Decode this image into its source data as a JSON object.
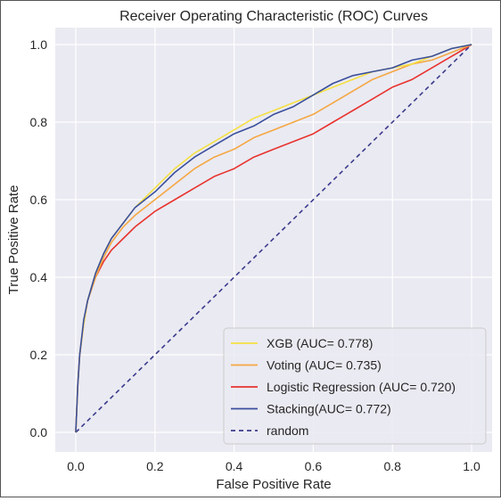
{
  "chart_data": {
    "type": "line",
    "title": "Receiver Operating Characteristic (ROC) Curves",
    "xlabel": "False Positive Rate",
    "ylabel": "True Positive Rate",
    "xlim": [
      0.0,
      1.0
    ],
    "ylim": [
      0.0,
      1.0
    ],
    "xticks": [
      "0.0",
      "0.2",
      "0.4",
      "0.6",
      "0.8",
      "1.0"
    ],
    "yticks": [
      "0.0",
      "0.2",
      "0.4",
      "0.6",
      "0.8",
      "1.0"
    ],
    "grid": true,
    "background": "#eaeaf2",
    "legend_position": "lower-right",
    "series": [
      {
        "name": "XGB (AUC= 0.778)",
        "color": "#f5e042",
        "dashed": false,
        "x": [
          0,
          0.005,
          0.01,
          0.02,
          0.03,
          0.05,
          0.07,
          0.09,
          0.12,
          0.15,
          0.2,
          0.25,
          0.3,
          0.35,
          0.4,
          0.45,
          0.5,
          0.55,
          0.6,
          0.65,
          0.7,
          0.75,
          0.8,
          0.85,
          0.9,
          0.95,
          1.0
        ],
        "y": [
          0,
          0.12,
          0.2,
          0.28,
          0.34,
          0.41,
          0.46,
          0.5,
          0.54,
          0.58,
          0.63,
          0.68,
          0.72,
          0.75,
          0.78,
          0.81,
          0.83,
          0.85,
          0.87,
          0.89,
          0.91,
          0.93,
          0.94,
          0.95,
          0.97,
          0.99,
          1.0
        ]
      },
      {
        "name": "Voting (AUC= 0.735)",
        "color": "#f5a742",
        "dashed": false,
        "x": [
          0,
          0.005,
          0.01,
          0.02,
          0.03,
          0.05,
          0.07,
          0.09,
          0.12,
          0.15,
          0.2,
          0.25,
          0.3,
          0.35,
          0.4,
          0.45,
          0.5,
          0.55,
          0.6,
          0.65,
          0.7,
          0.75,
          0.8,
          0.85,
          0.9,
          0.95,
          1.0
        ],
        "y": [
          0,
          0.12,
          0.2,
          0.28,
          0.34,
          0.4,
          0.45,
          0.49,
          0.53,
          0.56,
          0.6,
          0.64,
          0.68,
          0.71,
          0.73,
          0.76,
          0.78,
          0.8,
          0.82,
          0.85,
          0.88,
          0.91,
          0.93,
          0.95,
          0.96,
          0.98,
          1.0
        ]
      },
      {
        "name": "Logistic Regression (AUC= 0.720)",
        "color": "#e8332e",
        "dashed": false,
        "x": [
          0,
          0.005,
          0.01,
          0.02,
          0.03,
          0.05,
          0.07,
          0.09,
          0.12,
          0.15,
          0.2,
          0.25,
          0.3,
          0.35,
          0.4,
          0.45,
          0.5,
          0.55,
          0.6,
          0.65,
          0.7,
          0.75,
          0.8,
          0.85,
          0.9,
          0.95,
          1.0
        ],
        "y": [
          0,
          0.12,
          0.2,
          0.28,
          0.34,
          0.4,
          0.44,
          0.47,
          0.5,
          0.53,
          0.57,
          0.6,
          0.63,
          0.66,
          0.68,
          0.71,
          0.73,
          0.75,
          0.77,
          0.8,
          0.83,
          0.86,
          0.89,
          0.91,
          0.94,
          0.97,
          1.0
        ]
      },
      {
        "name": "Stacking(AUC= 0.772)",
        "color": "#3a4f9c",
        "dashed": false,
        "x": [
          0,
          0.005,
          0.01,
          0.02,
          0.03,
          0.05,
          0.07,
          0.09,
          0.12,
          0.15,
          0.2,
          0.25,
          0.3,
          0.35,
          0.4,
          0.45,
          0.5,
          0.55,
          0.6,
          0.65,
          0.7,
          0.75,
          0.8,
          0.85,
          0.9,
          0.95,
          1.0
        ],
        "y": [
          0,
          0.12,
          0.2,
          0.29,
          0.34,
          0.41,
          0.46,
          0.5,
          0.54,
          0.58,
          0.62,
          0.67,
          0.71,
          0.74,
          0.77,
          0.79,
          0.82,
          0.84,
          0.87,
          0.9,
          0.92,
          0.93,
          0.94,
          0.96,
          0.97,
          0.99,
          1.0
        ]
      },
      {
        "name": "random",
        "color": "#3a3a8c",
        "dashed": true,
        "x": [
          0,
          1
        ],
        "y": [
          0,
          1
        ]
      }
    ]
  }
}
